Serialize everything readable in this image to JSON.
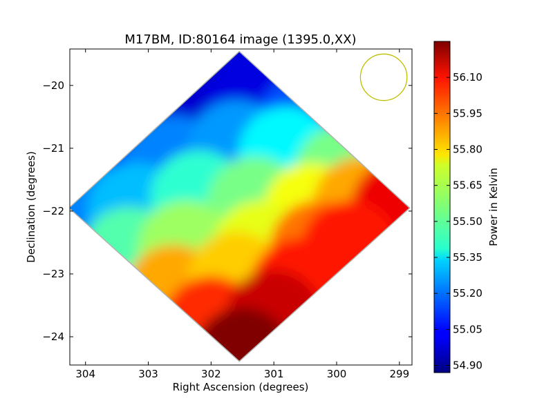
{
  "chart_data": {
    "type": "heatmap",
    "title": "M17BM, ID:80164 image (1395.0,XX)",
    "xlabel": "Right Ascension (degrees)",
    "ylabel": "Declination (degrees)",
    "xlim": [
      304.25,
      298.8
    ],
    "ylim": [
      -24.45,
      -19.42
    ],
    "x_ticks": [
      304,
      303,
      302,
      301,
      300,
      299
    ],
    "y_ticks": [
      -20,
      -21,
      -22,
      -23,
      -24
    ],
    "grid": false,
    "footprint": {
      "shape": "rotated-square",
      "corners": [
        {
          "ra": 301.55,
          "dec": -19.47
        },
        {
          "ra": 298.85,
          "dec": -21.95
        },
        {
          "ra": 301.55,
          "dec": -24.38
        },
        {
          "ra": 304.25,
          "dec": -21.95
        }
      ]
    },
    "field_values": [
      {
        "ra": 301.7,
        "dec": -19.8,
        "value": 54.88
      },
      {
        "ra": 302.5,
        "dec": -20.5,
        "value": 54.98
      },
      {
        "ra": 301.3,
        "dec": -20.1,
        "value": 55.0
      },
      {
        "ra": 300.5,
        "dec": -20.6,
        "value": 55.15
      },
      {
        "ra": 303.5,
        "dec": -21.3,
        "value": 55.15
      },
      {
        "ra": 302.6,
        "dec": -21.25,
        "value": 55.22
      },
      {
        "ra": 301.6,
        "dec": -21.0,
        "value": 55.25
      },
      {
        "ra": 300.8,
        "dec": -21.1,
        "value": 55.38
      },
      {
        "ra": 299.9,
        "dec": -21.4,
        "value": 55.55
      },
      {
        "ra": 304.1,
        "dec": -21.95,
        "value": 55.22
      },
      {
        "ra": 303.2,
        "dec": -22.0,
        "value": 55.3
      },
      {
        "ra": 302.2,
        "dec": -21.8,
        "value": 55.45
      },
      {
        "ra": 301.3,
        "dec": -21.9,
        "value": 55.55
      },
      {
        "ra": 300.4,
        "dec": -22.0,
        "value": 55.72
      },
      {
        "ra": 299.6,
        "dec": -21.9,
        "value": 55.85
      },
      {
        "ra": 299.0,
        "dec": -21.95,
        "value": 56.1
      },
      {
        "ra": 303.3,
        "dec": -22.7,
        "value": 55.5
      },
      {
        "ra": 302.4,
        "dec": -22.6,
        "value": 55.6
      },
      {
        "ra": 301.2,
        "dec": -22.6,
        "value": 55.7
      },
      {
        "ra": 300.3,
        "dec": -22.6,
        "value": 55.92
      },
      {
        "ra": 299.8,
        "dec": -22.6,
        "value": 56.05
      },
      {
        "ra": 302.6,
        "dec": -23.3,
        "value": 55.85
      },
      {
        "ra": 301.6,
        "dec": -23.1,
        "value": 55.8
      },
      {
        "ra": 300.6,
        "dec": -23.2,
        "value": 56.05
      },
      {
        "ra": 302.0,
        "dec": -23.8,
        "value": 56.02
      },
      {
        "ra": 301.0,
        "dec": -23.7,
        "value": 56.15
      },
      {
        "ra": 301.5,
        "dec": -24.3,
        "value": 56.25
      }
    ],
    "beam_circle": {
      "ra": 299.25,
      "dec": -19.87,
      "radius_deg": 0.37,
      "color": "#bfbf00"
    },
    "colorbar": {
      "label": "Power in Kelvin",
      "min": 54.87,
      "max": 56.25,
      "ticks": [
        "56.10",
        "55.95",
        "55.80",
        "55.65",
        "55.50",
        "55.35",
        "55.20",
        "55.05",
        "54.90"
      ],
      "colormap": "jet"
    }
  }
}
